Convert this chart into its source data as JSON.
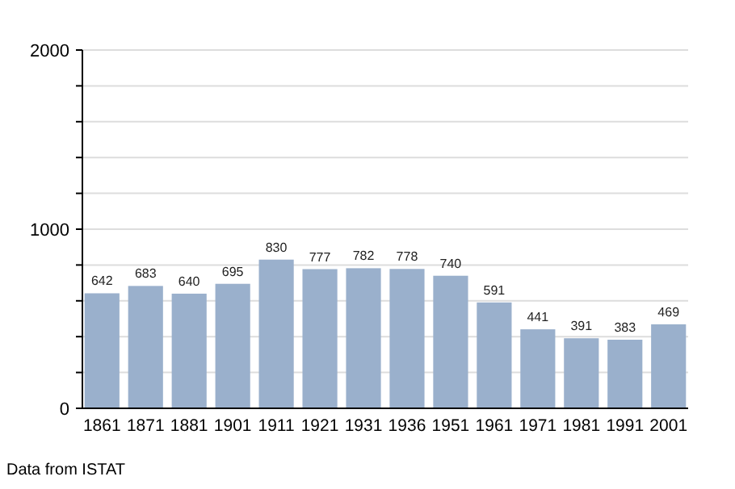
{
  "chart_data": {
    "type": "bar",
    "categories": [
      "1861",
      "1871",
      "1881",
      "1901",
      "1911",
      "1921",
      "1931",
      "1936",
      "1951",
      "1961",
      "1971",
      "1981",
      "1991",
      "2001"
    ],
    "values": [
      642,
      683,
      640,
      695,
      830,
      777,
      782,
      778,
      740,
      591,
      441,
      391,
      383,
      469
    ],
    "color": "#9ab0cc",
    "ylim": [
      0,
      2000
    ],
    "yticks": [
      0,
      {
        "value": 200,
        "label": null
      },
      {
        "value": 400,
        "label": null
      },
      {
        "value": 600,
        "label": null
      },
      {
        "value": 800,
        "label": null
      },
      1000,
      {
        "value": 1200,
        "label": null
      },
      {
        "value": 1400,
        "label": null
      },
      {
        "value": 1600,
        "label": null
      },
      {
        "value": 1800,
        "label": null
      },
      2000
    ],
    "grid": "y",
    "data_labels": true,
    "annotations": [
      "Data from ISTAT"
    ]
  }
}
